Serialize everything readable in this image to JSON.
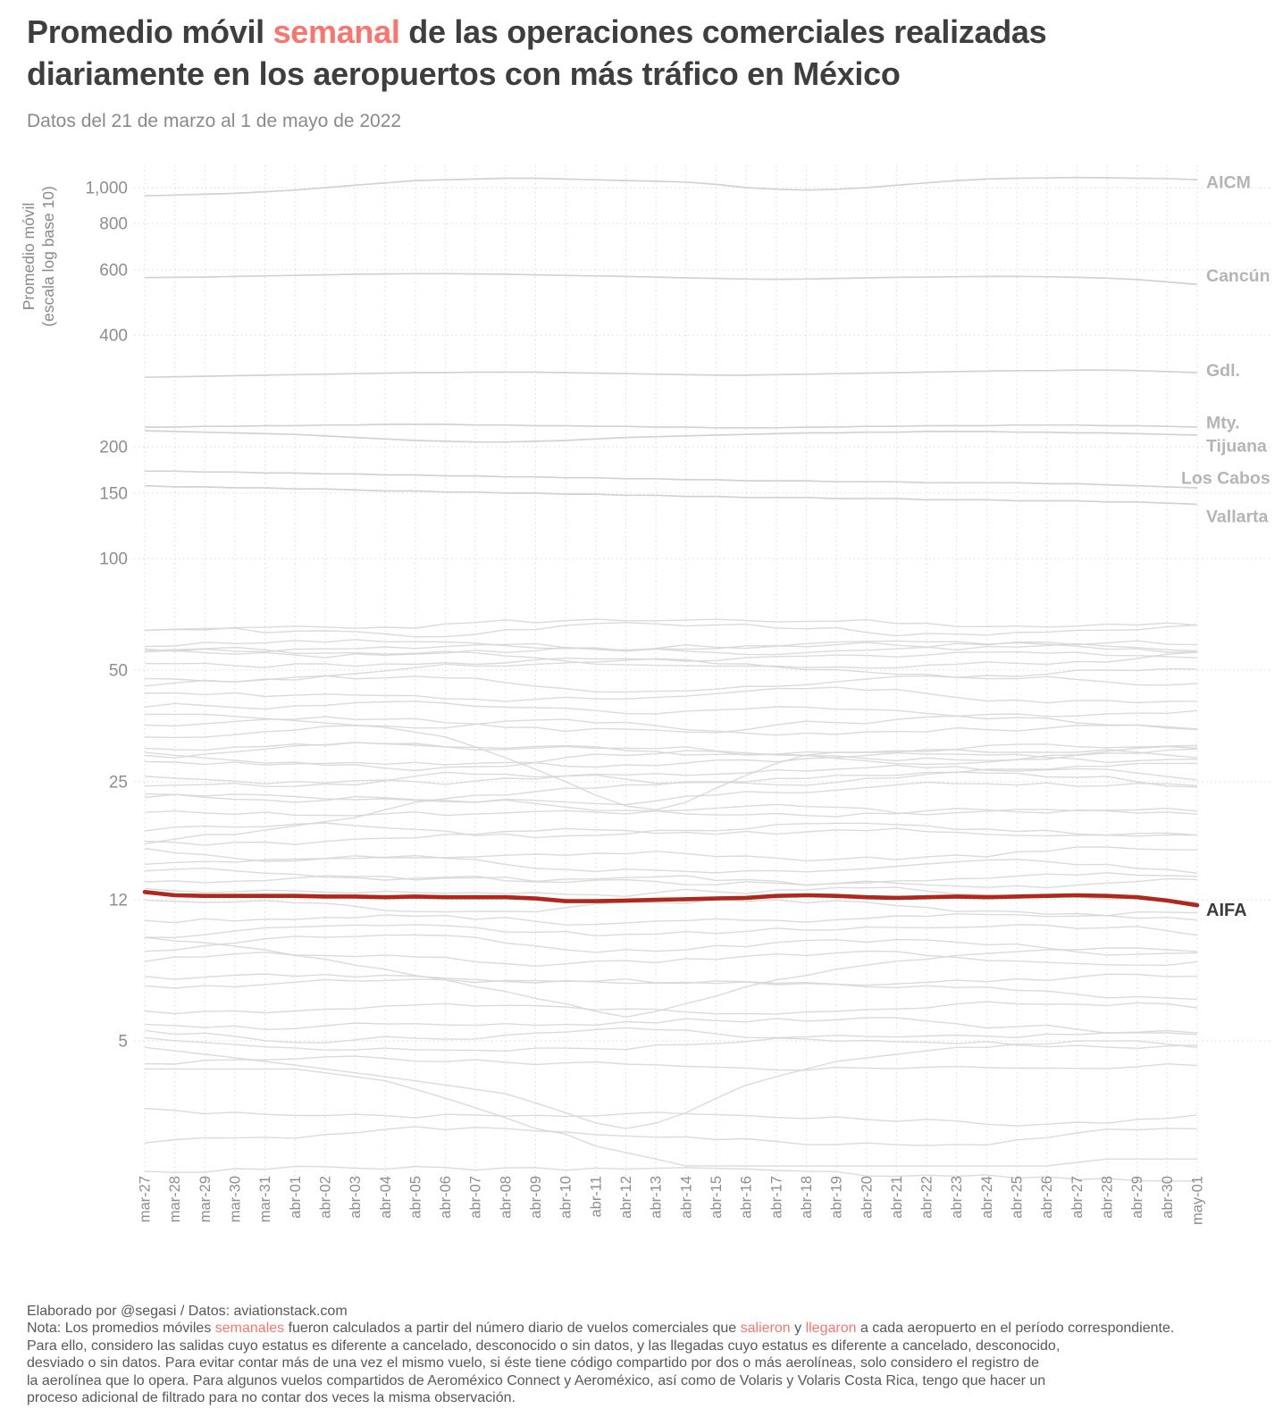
{
  "title": {
    "pre": "Promedio móvil ",
    "accent": "semanal",
    "post": " de las operaciones comerciales realizadas",
    "line2": "diariamente en los aeropuertos con más tráfico en México"
  },
  "subtitle": "Datos del 21 de marzo al 1 de mayo de 2022",
  "colors": {
    "accent": "#f8766d",
    "aifa_red": "#b0271c",
    "line_gray": "#d7d7d7",
    "label_gray": "#b5b5b5",
    "text_dark": "#3e3e3e"
  },
  "footer": {
    "credit": "Elaborado por @segasi / Datos: aviationstack.com",
    "note_line1_segments": [
      {
        "t": "Nota: Los promedios móviles "
      },
      {
        "t": "semanales",
        "accent": true
      },
      {
        "t": " fueron calculados a partir del número diario de vuelos comerciales que "
      },
      {
        "t": "salieron",
        "accent": true
      },
      {
        "t": " y "
      },
      {
        "t": "llegaron",
        "accent": true
      },
      {
        "t": " a cada aeropuerto en el período correspondiente."
      }
    ],
    "note_lines": [
      "Para ello, considero las salidas cuyo estatus es diferente a cancelado, desconocido o sin datos, y las llegadas cuyo estatus es diferente a cancelado, desconocido,",
      "desviado o sin datos. Para evitar contar más de una vez el mismo vuelo, si éste tiene código compartido por dos o más aerolíneas, solo considero el registro de",
      "la aerolínea que lo opera. Para algunos vuelos compartidos de Aeroméxico Connect y Aeroméxico, así como de Volaris y Volaris Costa Rica, tengo que hacer un",
      "proceso adicional de filtrado para no contar dos veces la misma observación."
    ]
  },
  "chart_data": {
    "type": "line",
    "yscale": "log10",
    "ylabel_lines": [
      "Promedio móvil",
      "(escala log base 10)"
    ],
    "yticks": [
      {
        "v": 1000,
        "label": "1,000"
      },
      {
        "v": 800,
        "label": "800"
      },
      {
        "v": 600,
        "label": "600"
      },
      {
        "v": 400,
        "label": "400"
      },
      {
        "v": 200,
        "label": "200"
      },
      {
        "v": 150,
        "label": "150"
      },
      {
        "v": 100,
        "label": "100"
      },
      {
        "v": 50,
        "label": "50"
      },
      {
        "v": 25,
        "label": "25"
      },
      {
        "v": 12,
        "label": "12"
      },
      {
        "v": 5,
        "label": "5"
      }
    ],
    "x": [
      "mar-27",
      "mar-28",
      "mar-29",
      "mar-30",
      "mar-31",
      "abr-01",
      "abr-02",
      "abr-03",
      "abr-04",
      "abr-05",
      "abr-06",
      "abr-07",
      "abr-08",
      "abr-09",
      "abr-10",
      "abr-11",
      "abr-12",
      "abr-13",
      "abr-14",
      "abr-15",
      "abr-16",
      "abr-17",
      "abr-18",
      "abr-19",
      "abr-20",
      "abr-21",
      "abr-22",
      "abr-23",
      "abr-24",
      "abr-25",
      "abr-26",
      "abr-27",
      "abr-28",
      "abr-29",
      "abr-30",
      "may-01"
    ],
    "series": [
      {
        "name": "AICM",
        "label": "AICM",
        "label_value": 1038,
        "emph": false,
        "values": [
          950,
          955,
          960,
          965,
          975,
          985,
          1000,
          1015,
          1030,
          1045,
          1050,
          1055,
          1060,
          1060,
          1055,
          1050,
          1045,
          1040,
          1035,
          1020,
          1000,
          990,
          985,
          990,
          1000,
          1015,
          1030,
          1045,
          1055,
          1060,
          1062,
          1065,
          1063,
          1060,
          1058,
          1050
        ]
      },
      {
        "name": "Cancún",
        "label": "Cancún",
        "label_value": 580,
        "emph": false,
        "values": [
          572,
          573,
          574,
          576,
          578,
          580,
          582,
          584,
          585,
          586,
          586,
          585,
          584,
          582,
          580,
          578,
          576,
          574,
          571,
          569,
          567,
          566,
          567,
          569,
          571,
          573,
          574,
          575,
          576,
          576,
          575,
          573,
          570,
          565,
          557,
          548
        ]
      },
      {
        "name": "Gdl.",
        "label": "Gdl.",
        "label_value": 322,
        "emph": false,
        "values": [
          308,
          309,
          310,
          311,
          312,
          313,
          314,
          315,
          316,
          317,
          317,
          318,
          318,
          318,
          317,
          316,
          315,
          314,
          313,
          312,
          312,
          313,
          314,
          315,
          316,
          317,
          318,
          319,
          320,
          321,
          321,
          322,
          322,
          321,
          319,
          317
        ]
      },
      {
        "name": "Mty.",
        "label": "Mty.",
        "label_value": 233,
        "emph": false,
        "values": [
          226,
          226,
          227,
          227,
          228,
          228,
          229,
          229,
          230,
          230,
          230,
          229,
          229,
          228,
          228,
          227,
          227,
          226,
          226,
          225,
          225,
          225,
          226,
          226,
          227,
          227,
          228,
          228,
          228,
          229,
          229,
          229,
          228,
          228,
          227,
          226
        ]
      },
      {
        "name": "Tijuana",
        "label": "Tijuana",
        "label_value": 202,
        "emph": false,
        "values": [
          221,
          220,
          219,
          218,
          217,
          216,
          214,
          212,
          210,
          208,
          207,
          206,
          206,
          207,
          208,
          210,
          212,
          213,
          214,
          215,
          216,
          217,
          218,
          218,
          219,
          219,
          220,
          220,
          220,
          219,
          219,
          218,
          218,
          217,
          216,
          215
        ]
      },
      {
        "name": "Los Cabos",
        "label": "Los Cabos",
        "label_value": 165,
        "label_dx": -28,
        "emph": false,
        "values": [
          172,
          172,
          171,
          171,
          170,
          170,
          169,
          169,
          168,
          168,
          167,
          167,
          166,
          166,
          165,
          165,
          164,
          164,
          163,
          163,
          162,
          162,
          162,
          161,
          161,
          161,
          160,
          160,
          160,
          160,
          159,
          159,
          158,
          157,
          156,
          155
        ]
      },
      {
        "name": "Vallarta",
        "label": "Vallarta",
        "label_value": 130,
        "emph": false,
        "values": [
          157,
          156,
          156,
          155,
          155,
          154,
          154,
          153,
          152,
          152,
          151,
          151,
          150,
          150,
          149,
          149,
          148,
          148,
          147,
          147,
          146,
          146,
          146,
          145,
          145,
          145,
          144,
          144,
          144,
          143,
          143,
          143,
          142,
          142,
          141,
          140
        ]
      },
      {
        "name": "AIFA",
        "label": "AIFA",
        "label_value": 11.3,
        "emph": true,
        "values": [
          12.6,
          12.35,
          12.3,
          12.3,
          12.3,
          12.3,
          12.25,
          12.25,
          12.2,
          12.25,
          12.2,
          12.2,
          12.2,
          12.1,
          11.9,
          11.9,
          11.95,
          12.0,
          12.05,
          12.1,
          12.15,
          12.3,
          12.35,
          12.3,
          12.2,
          12.15,
          12.2,
          12.25,
          12.2,
          12.25,
          12.3,
          12.35,
          12.3,
          12.2,
          11.95,
          11.6
        ]
      }
    ],
    "feature_series": [
      {
        "values": [
          38,
          38,
          38,
          37.5,
          37,
          36.5,
          36,
          35.5,
          35,
          34,
          33,
          31,
          29,
          27,
          25,
          23,
          21.5,
          21,
          22,
          24,
          26,
          28,
          29.5,
          30,
          30,
          30,
          30.5,
          30.5,
          30,
          30,
          30,
          30,
          30.5,
          30,
          29.5,
          29
        ]
      },
      {
        "values": [
          17,
          17.5,
          18,
          18,
          18.5,
          19,
          19.5,
          20,
          21,
          22,
          22.5,
          23,
          23,
          23.5,
          24,
          24,
          24.5,
          24.5,
          25,
          25,
          25,
          25.5,
          25.5,
          26,
          26,
          26,
          26.5,
          26.5,
          27,
          27,
          27,
          27.5,
          27.5,
          28,
          28,
          28
        ]
      },
      {
        "values": [
          4.2,
          4.2,
          4.2,
          4.2,
          4.2,
          4.2,
          4.1,
          4.0,
          3.9,
          3.7,
          3.5,
          3.3,
          3.1,
          2.9,
          2.8,
          2.6,
          2.5,
          2.4,
          2.3,
          2.3,
          2.3,
          2.3,
          2.3,
          2.3,
          2.3,
          2.3,
          2.3,
          2.3,
          2.3,
          2.3,
          2.3,
          2.35,
          2.4,
          2.4,
          2.4,
          2.4
        ]
      },
      {
        "values": [
          9.5,
          9.3,
          9.2,
          9.0,
          8.8,
          8.5,
          8.3,
          8.0,
          7.8,
          7.5,
          7.3,
          7.0,
          6.8,
          6.5,
          6.3,
          6.0,
          5.8,
          6.0,
          6.3,
          6.6,
          7.0,
          7.3,
          7.5,
          7.8,
          8.0,
          8.2,
          8.3,
          8.5,
          8.6,
          8.7,
          8.8,
          8.8,
          8.9,
          8.9,
          8.8,
          8.7
        ]
      },
      {
        "values": [
          4.8,
          4.7,
          4.6,
          4.5,
          4.4,
          4.3,
          4.2,
          4.1,
          4.0,
          3.9,
          3.8,
          3.7,
          3.6,
          3.4,
          3.2,
          3.0,
          2.9,
          3.0,
          3.2,
          3.5,
          3.8,
          4.0,
          4.2,
          4.4,
          4.5,
          4.6,
          4.7,
          4.8,
          4.8,
          4.9,
          4.9,
          5.0,
          5.0,
          5.0,
          4.9,
          4.8
        ]
      }
    ],
    "background_series": [
      {
        "b": 66,
        "s": 1
      },
      {
        "b": 63,
        "s": 2
      },
      {
        "b": 58,
        "s": 3
      },
      {
        "b": 57,
        "s": 4
      },
      {
        "b": 56,
        "s": 5
      },
      {
        "b": 55,
        "s": 6
      },
      {
        "b": 54,
        "s": 7
      },
      {
        "b": 50,
        "s": 8
      },
      {
        "b": 46,
        "s": 9
      },
      {
        "b": 42,
        "s": 10
      },
      {
        "b": 39.5,
        "s": 11
      },
      {
        "b": 36,
        "s": 12
      },
      {
        "b": 34,
        "s": 13
      },
      {
        "b": 31.5,
        "s": 14
      },
      {
        "b": 30,
        "s": 15
      },
      {
        "b": 28.5,
        "s": 16
      },
      {
        "b": 27.5,
        "s": 17
      },
      {
        "b": 26,
        "s": 18
      },
      {
        "b": 24.5,
        "s": 19
      },
      {
        "b": 23.5,
        "s": 20
      },
      {
        "b": 22,
        "s": 21
      },
      {
        "b": 20.5,
        "s": 22
      },
      {
        "b": 19,
        "s": 23
      },
      {
        "b": 17.5,
        "s": 24
      },
      {
        "b": 16,
        "s": 25
      },
      {
        "b": 15,
        "s": 26
      },
      {
        "b": 13.8,
        "s": 27
      },
      {
        "b": 13,
        "s": 28
      },
      {
        "b": 12.4,
        "s": 29
      },
      {
        "b": 11.7,
        "s": 30
      },
      {
        "b": 10.6,
        "s": 31
      },
      {
        "b": 9.8,
        "s": 32
      },
      {
        "b": 9,
        "s": 33
      },
      {
        "b": 8.2,
        "s": 34
      },
      {
        "b": 7.4,
        "s": 35
      },
      {
        "b": 6.8,
        "s": 36
      },
      {
        "b": 6.2,
        "s": 37
      },
      {
        "b": 5.6,
        "s": 38
      },
      {
        "b": 5.15,
        "s": 39
      },
      {
        "b": 4.95,
        "s": 40
      },
      {
        "b": 4.4,
        "s": 41
      },
      {
        "b": 3.25,
        "s": 42
      },
      {
        "b": 2.75,
        "s": 43
      },
      {
        "b": 2.2,
        "s": 44
      }
    ]
  }
}
